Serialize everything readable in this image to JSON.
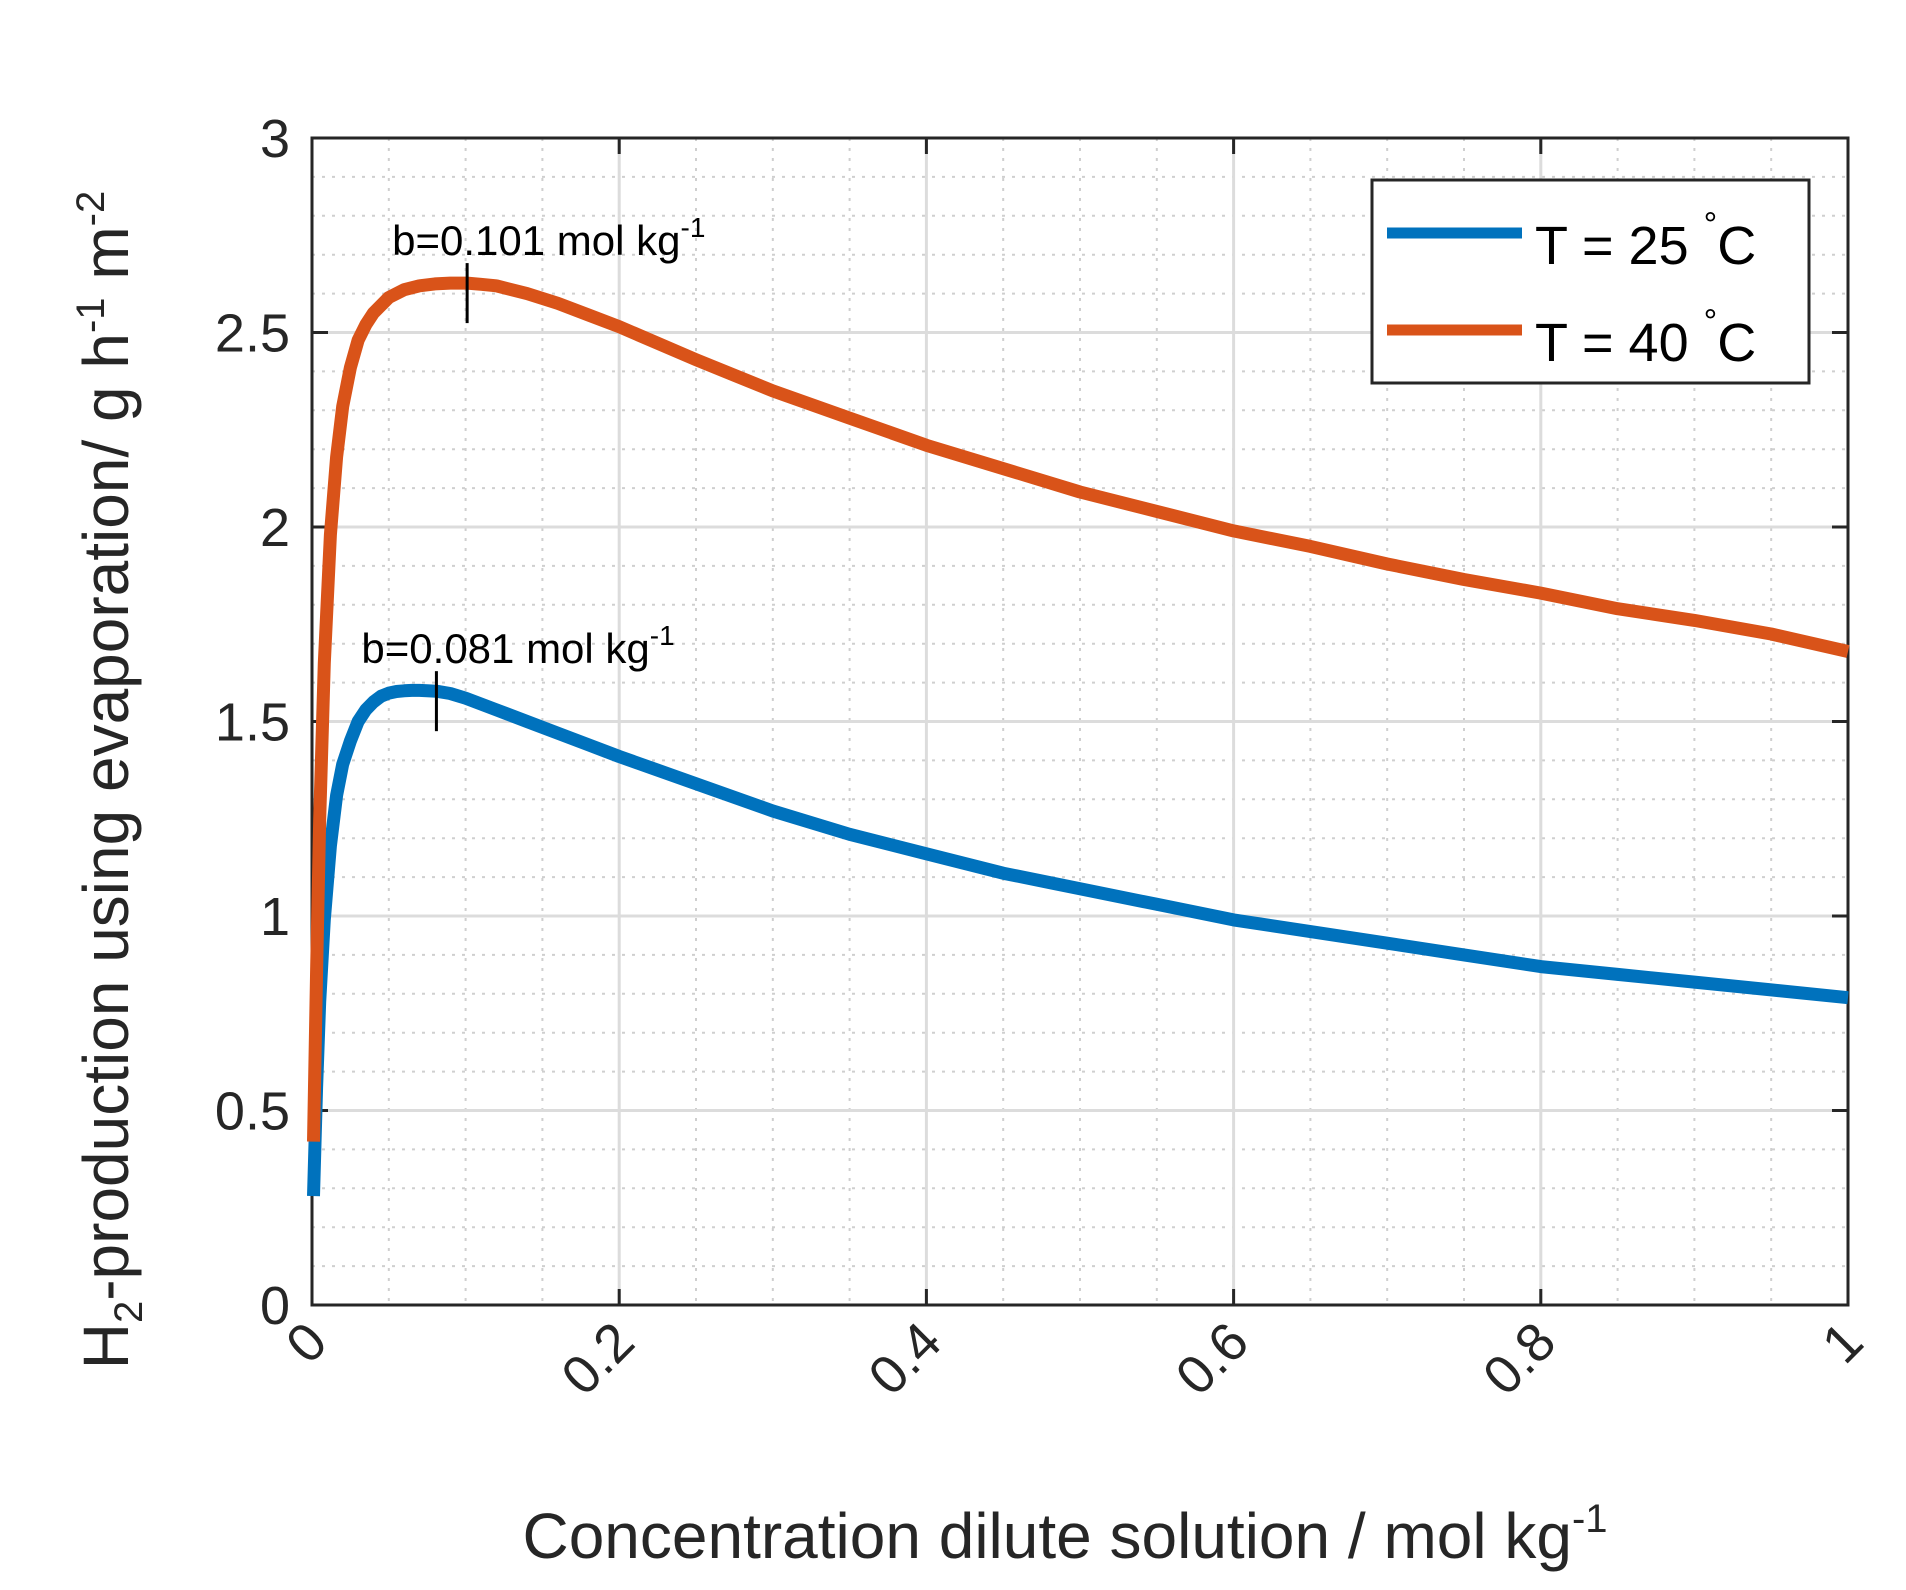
{
  "chart_data": {
    "type": "line",
    "xlabel": "Concentration dilute solution / mol kg",
    "xlabel_sup": "-1",
    "ylabel_parts": {
      "main": "H",
      "sub": "2",
      "rest": "-production using evaporation/ g h",
      "sup1": "-1",
      "mid": " m",
      "sup2": "-2"
    },
    "xlim": [
      0,
      1
    ],
    "ylim": [
      0,
      3
    ],
    "x_ticks": [
      0,
      0.2,
      0.4,
      0.6,
      0.8,
      1
    ],
    "x_tick_labels": [
      "0",
      "0.2",
      "0.4",
      "0.6",
      "0.8",
      "1"
    ],
    "y_ticks": [
      0,
      0.5,
      1,
      1.5,
      2,
      2.5,
      3
    ],
    "y_tick_labels": [
      "0",
      "0.5",
      "1",
      "1.5",
      "2",
      "2.5",
      "3"
    ],
    "grid": true,
    "minor_grid": true,
    "legend_position": "top-right",
    "series": [
      {
        "name": "T = 25 °C",
        "legend_main": "T = 25 ",
        "legend_deg": "°",
        "legend_unit": "C",
        "color": "#0072BD",
        "x": [
          0.001,
          0.003,
          0.005,
          0.008,
          0.012,
          0.016,
          0.02,
          0.025,
          0.03,
          0.035,
          0.04,
          0.045,
          0.05,
          0.055,
          0.06,
          0.065,
          0.07,
          0.075,
          0.081,
          0.09,
          0.1,
          0.12,
          0.14,
          0.16,
          0.18,
          0.2,
          0.25,
          0.3,
          0.35,
          0.4,
          0.45,
          0.5,
          0.55,
          0.6,
          0.65,
          0.7,
          0.75,
          0.8,
          0.85,
          0.9,
          0.95,
          1.0
        ],
        "y": [
          0.28,
          0.56,
          0.78,
          0.99,
          1.18,
          1.31,
          1.39,
          1.45,
          1.5,
          1.53,
          1.55,
          1.565,
          1.573,
          1.577,
          1.579,
          1.58,
          1.58,
          1.579,
          1.578,
          1.572,
          1.56,
          1.53,
          1.5,
          1.47,
          1.44,
          1.41,
          1.34,
          1.27,
          1.21,
          1.16,
          1.11,
          1.07,
          1.03,
          0.99,
          0.96,
          0.93,
          0.9,
          0.87,
          0.85,
          0.83,
          0.81,
          0.79
        ]
      },
      {
        "name": "T = 40 °C",
        "legend_main": "T = 40 ",
        "legend_deg": "°",
        "legend_unit": "C",
        "color": "#D95319",
        "x": [
          0.001,
          0.003,
          0.005,
          0.008,
          0.012,
          0.016,
          0.02,
          0.025,
          0.03,
          0.035,
          0.04,
          0.05,
          0.06,
          0.07,
          0.08,
          0.09,
          0.101,
          0.11,
          0.12,
          0.14,
          0.16,
          0.18,
          0.2,
          0.25,
          0.3,
          0.35,
          0.4,
          0.45,
          0.5,
          0.55,
          0.6,
          0.65,
          0.7,
          0.75,
          0.8,
          0.85,
          0.9,
          0.95,
          1.0
        ],
        "y": [
          0.42,
          0.86,
          1.25,
          1.65,
          1.98,
          2.18,
          2.31,
          2.41,
          2.48,
          2.52,
          2.55,
          2.59,
          2.61,
          2.62,
          2.625,
          2.627,
          2.627,
          2.624,
          2.62,
          2.6,
          2.575,
          2.545,
          2.515,
          2.43,
          2.35,
          2.28,
          2.21,
          2.15,
          2.09,
          2.04,
          1.99,
          1.95,
          1.905,
          1.865,
          1.83,
          1.79,
          1.76,
          1.725,
          1.68
        ]
      }
    ],
    "annotations": [
      {
        "text": "b=0.101 mol kg",
        "sup": "-1",
        "x": 0.101,
        "y": 2.627
      },
      {
        "text": "b=0.081 mol kg",
        "sup": "-1",
        "x": 0.081,
        "y": 1.578
      }
    ]
  }
}
